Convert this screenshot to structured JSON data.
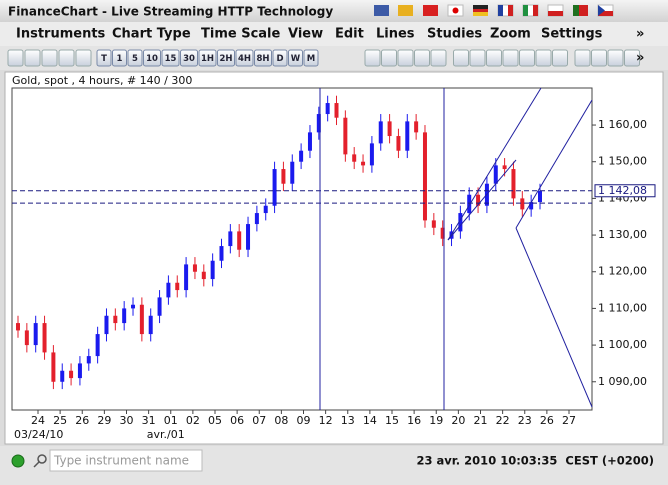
{
  "window": {
    "title": "FinanceChart - Live Streaming HTTP Technology"
  },
  "menu": [
    "Instruments",
    "Chart Type",
    "Time Scale",
    "View",
    "Edit",
    "Lines",
    "Studies",
    "Zoom",
    "Settings",
    "»"
  ],
  "toolbar": [
    "T",
    "1",
    "5",
    "10",
    "15",
    "30",
    "1H",
    "2H",
    "4H",
    "8H",
    "D",
    "W",
    "M"
  ],
  "toolbar_more": "»",
  "chart_data": {
    "type": "candlestick",
    "title": "Gold, spot , 4 hours, # 140 / 300",
    "categories": [
      "24",
      "25",
      "26",
      "29",
      "30",
      "31",
      "01",
      "02",
      "05",
      "06",
      "07",
      "08",
      "09",
      "12",
      "13",
      "14",
      "15",
      "16",
      "19",
      "20",
      "21",
      "22",
      "23",
      "26",
      "27"
    ],
    "category_groups": [
      "03/24/10",
      null,
      null,
      null,
      null,
      null,
      "avr./01",
      null,
      null,
      null,
      null,
      null,
      null,
      null,
      null,
      null,
      null,
      null,
      null,
      null,
      null,
      null,
      null,
      null,
      null
    ],
    "open": [
      1106,
      1104,
      1100,
      1106,
      1098,
      1090,
      1093,
      1091,
      1095,
      1097,
      1103,
      1108,
      1106,
      1110,
      1111,
      1103,
      1108,
      1113,
      1117,
      1115,
      1122,
      1120,
      1118,
      1123,
      1127,
      1131,
      1126,
      1133,
      1136,
      1138,
      1148,
      1144,
      1150,
      1153,
      1158,
      1163,
      1166,
      1162,
      1152,
      1150,
      1149,
      1155,
      1161,
      1157,
      1153,
      1161,
      1158,
      1134,
      1132,
      1129,
      1131,
      1136,
      1141,
      1138,
      1144,
      1149,
      1148,
      1140,
      1137,
      1139
    ],
    "high": [
      1108,
      1106,
      1108,
      1108,
      1100,
      1095,
      1095,
      1097,
      1099,
      1105,
      1110,
      1110,
      1112,
      1113,
      1113,
      1110,
      1115,
      1119,
      1119,
      1124,
      1124,
      1122,
      1125,
      1129,
      1133,
      1133,
      1135,
      1138,
      1140,
      1150,
      1150,
      1152,
      1155,
      1160,
      1165,
      1168,
      1168,
      1164,
      1154,
      1152,
      1157,
      1163,
      1163,
      1159,
      1163,
      1163,
      1160,
      1136,
      1134,
      1133,
      1138,
      1143,
      1143,
      1146,
      1151,
      1151,
      1150,
      1142,
      1141,
      1144
    ],
    "low": [
      1102,
      1098,
      1098,
      1096,
      1088,
      1088,
      1089,
      1089,
      1093,
      1095,
      1101,
      1104,
      1104,
      1108,
      1101,
      1101,
      1106,
      1111,
      1113,
      1113,
      1118,
      1116,
      1116,
      1121,
      1125,
      1124,
      1124,
      1131,
      1134,
      1136,
      1142,
      1142,
      1148,
      1151,
      1156,
      1161,
      1160,
      1150,
      1148,
      1147,
      1147,
      1153,
      1155,
      1151,
      1151,
      1156,
      1132,
      1130,
      1127,
      1127,
      1129,
      1134,
      1136,
      1136,
      1142,
      1146,
      1138,
      1135,
      1135,
      1137
    ],
    "close": [
      1104,
      1100,
      1106,
      1098,
      1090,
      1093,
      1091,
      1095,
      1097,
      1103,
      1108,
      1106,
      1110,
      1111,
      1103,
      1108,
      1113,
      1117,
      1115,
      1122,
      1120,
      1118,
      1123,
      1127,
      1131,
      1126,
      1133,
      1136,
      1138,
      1148,
      1144,
      1150,
      1153,
      1158,
      1163,
      1166,
      1162,
      1152,
      1150,
      1149,
      1155,
      1161,
      1157,
      1153,
      1161,
      1158,
      1134,
      1132,
      1129,
      1131,
      1136,
      1141,
      1138,
      1144,
      1149,
      1148,
      1140,
      1137,
      1139,
      1142
    ],
    "up_color": "#1a1aee",
    "down_color": "#e3202c",
    "ylim": [
      1082.3,
      1170.1
    ],
    "yticks": [
      {
        "value": 1090,
        "label": "1 090,00"
      },
      {
        "value": 1100,
        "label": "1 100,00"
      },
      {
        "value": 1110,
        "label": "1 110,00"
      },
      {
        "value": 1120,
        "label": "1 120,00"
      },
      {
        "value": 1130,
        "label": "1 130,00"
      },
      {
        "value": 1140,
        "label": "1 140,00"
      },
      {
        "value": 1150,
        "label": "1 150,00"
      },
      {
        "value": 1160,
        "label": "1 160,00"
      }
    ],
    "hlines": [
      {
        "value": 1142.08,
        "label": "1 142,08"
      },
      {
        "value": 1138.7
      }
    ],
    "hline_color": "#1a1a80"
  },
  "status": {
    "search_placeholder": "Type instrument name",
    "datetime": "23 avr. 2010 10:03:35  CEST (+0200)"
  }
}
